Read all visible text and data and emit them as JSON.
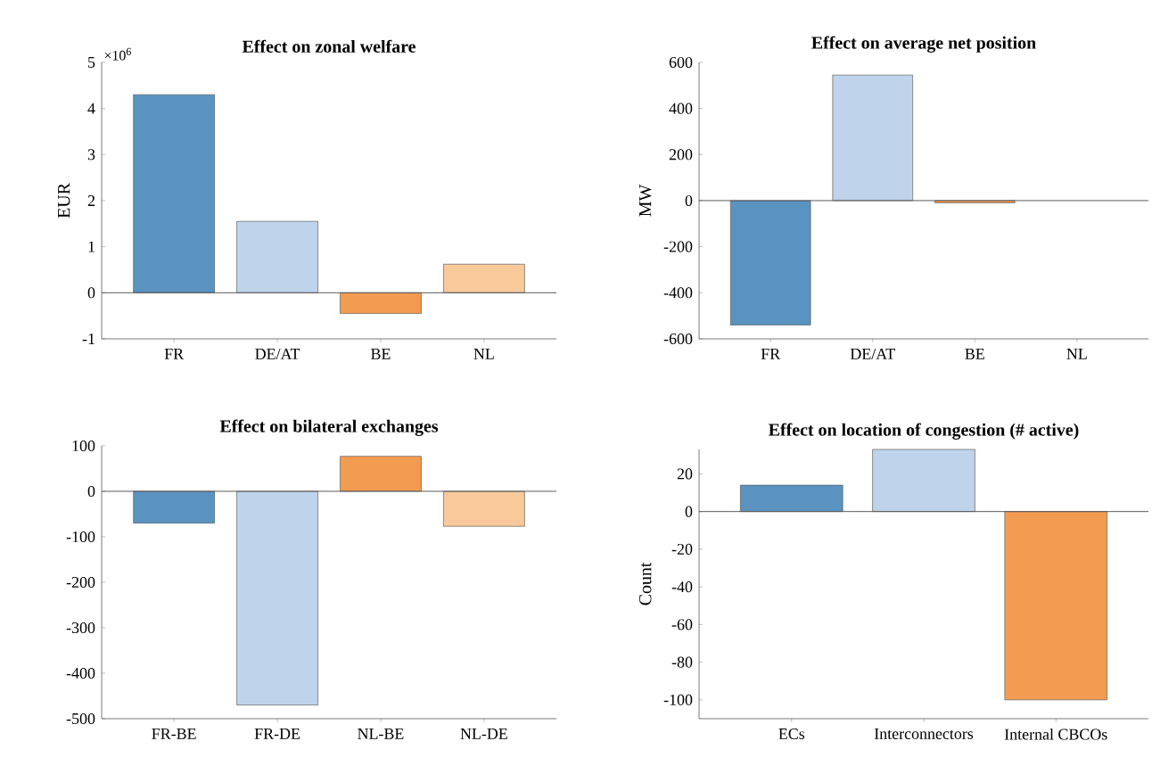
{
  "chart_data": [
    {
      "type": "bar",
      "title": "Effect on zonal welfare",
      "ylabel": "EUR",
      "categories": [
        "FR",
        "DE/AT",
        "BE",
        "NL"
      ],
      "values": [
        4.3,
        1.55,
        -0.45,
        0.62
      ],
      "colors": [
        "#5b93c0",
        "#bfd3ea",
        "#f49b52",
        "#f8c99a"
      ],
      "ylim": [
        -1,
        5
      ],
      "yticks": [
        -1,
        0,
        1,
        2,
        3,
        4,
        5
      ],
      "annotations": [
        "×10$^{6}$"
      ]
    },
    {
      "type": "bar",
      "title": "Effect on average net position",
      "ylabel": "MW",
      "categories": [
        "FR",
        "DE/AT",
        "BE",
        "NL"
      ],
      "values": [
        -540,
        545,
        -10,
        null
      ],
      "colors": [
        "#5b93c0",
        "#bfd3ea",
        "#f49b52",
        "#f8c99a"
      ],
      "ylim": [
        -600,
        600
      ],
      "yticks": [
        -600,
        -400,
        -200,
        0,
        200,
        400,
        600
      ]
    },
    {
      "type": "bar",
      "title": "Effect on bilateral exchanges",
      "categories": [
        "FR-BE",
        "FR-DE",
        "NL-BE",
        "NL-DE"
      ],
      "values": [
        -70,
        -470,
        77,
        -77
      ],
      "colors": [
        "#5b93c0",
        "#bfd3ea",
        "#f49b52",
        "#f8c99a"
      ],
      "ylim": [
        -500,
        100
      ],
      "yticks": [
        -500,
        -400,
        -300,
        -200,
        -100,
        0,
        100
      ]
    },
    {
      "type": "bar",
      "title": "Effect on location of congestion (# active)",
      "ylabel": "Count",
      "categories": [
        "ECs",
        "Interconnectors",
        "Internal CBCOs"
      ],
      "values": [
        14,
        33,
        -100
      ],
      "colors": [
        "#5b93c0",
        "#bfd3ea",
        "#f49b52"
      ],
      "ylim": [
        -110,
        33
      ],
      "yticks": [
        -100,
        -80,
        -60,
        -40,
        -20,
        0,
        20
      ]
    }
  ]
}
